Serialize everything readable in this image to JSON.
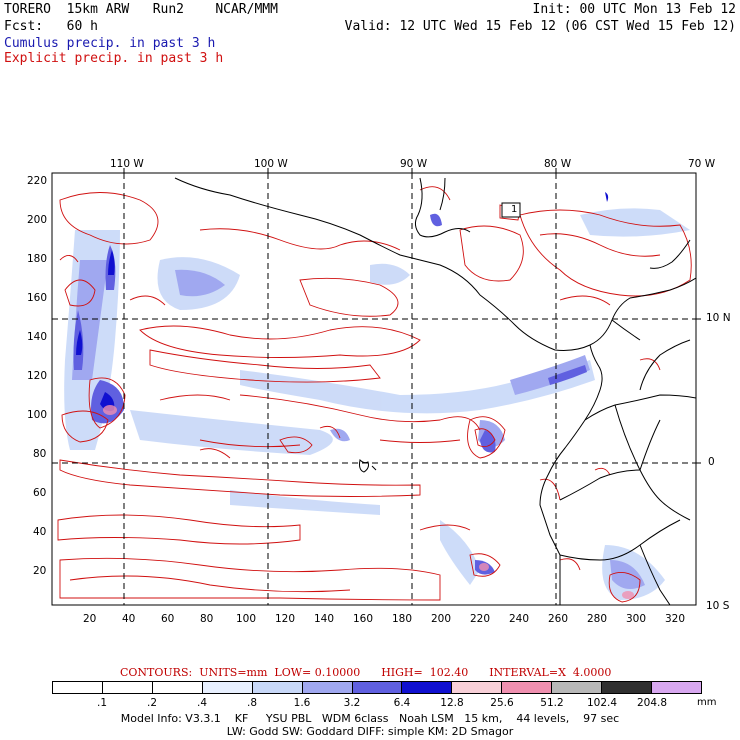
{
  "header": {
    "line1_left": "TORERO  15km ARW   Run2    NCAR/MMM",
    "line1_right": "Init: 00 UTC Mon 13 Feb 12",
    "line2_left": "Fcst:   60 h",
    "line2_right": "Valid: 12 UTC Wed 15 Feb 12 (06 CST Wed 15 Feb 12)",
    "line3": "Cumulus precip. in past 3 h",
    "line4": "Explicit precip. in past 3 h"
  },
  "axes": {
    "top_lon": [
      "110 W",
      "100 W",
      "90 W",
      "80 W",
      "70 W"
    ],
    "right_lat": [
      "10 N",
      "0",
      "10 S"
    ],
    "left_y": [
      "220",
      "200",
      "180",
      "160",
      "140",
      "120",
      "100",
      "80",
      "60",
      "40",
      "20"
    ],
    "bottom_x": [
      "20",
      "40",
      "60",
      "80",
      "100",
      "120",
      "140",
      "160",
      "180",
      "200",
      "220",
      "240",
      "260",
      "280",
      "300",
      "320"
    ]
  },
  "map_labels": {
    "box_label": "1"
  },
  "contours_text": "CONTOURS:  UNITS=mm  LOW= 0.10000      HIGH=  102.40      INTERVAL=X  4.0000",
  "colorbar": {
    "labels": [
      ".1",
      ".2",
      ".4",
      ".8",
      "1.6",
      "3.2",
      "6.4",
      "12.8",
      "25.6",
      "51.2",
      "102.4",
      "204.8"
    ],
    "unit": "mm",
    "colors": [
      "#ffffff",
      "#ffffff",
      "#ffffff",
      "#e8f0ff",
      "#c8d8f8",
      "#a0a8f0",
      "#6060e0",
      "#1010d0",
      "#f8d0d8",
      "#f090b0",
      "#b8b8b8",
      "#303030",
      "#d8a8f0"
    ]
  },
  "footer": {
    "line1": "Model Info: V3.3.1    KF     YSU PBL   WDM 6class   Noah LSM   15 km,    44 levels,    97 sec",
    "line2": "LW: Godd SW: Goddard DIFF: simple KM: 2D Smagor"
  },
  "colors": {
    "cumulus": "#1a1ab0",
    "explicit": "#d01010",
    "coast": "#000000"
  }
}
